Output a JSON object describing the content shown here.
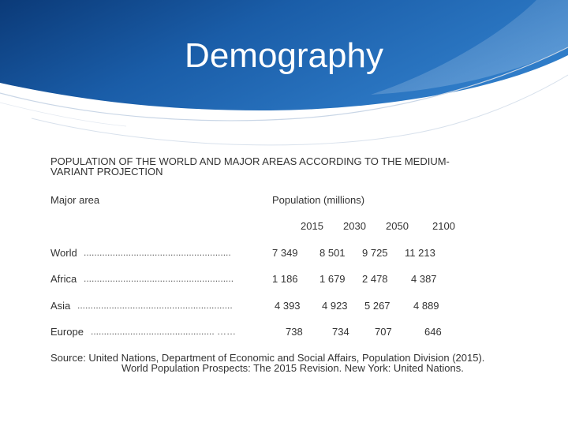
{
  "slide": {
    "title": "Demography",
    "heading": "POPULATION OF THE WORLD AND MAJOR AREAS ACCORDING TO THE MEDIUM-VARIANT PROJECTION"
  },
  "table": {
    "col_area": "Major area",
    "col_population": "Population (millions)",
    "years": [
      "2015",
      "2030",
      "2050",
      "2100"
    ],
    "rows": [
      {
        "area": "World",
        "dots": "........................................................",
        "values": [
          "7 349",
          "8 501",
          "9 725",
          "11 213"
        ]
      },
      {
        "area": "Africa",
        "dots": ".........................................................",
        "values": [
          "1 186",
          "1 679",
          "2 478",
          "4 387"
        ]
      },
      {
        "area": "Asia",
        "dots": "...........................................................",
        "values": [
          "4 393",
          "4 923",
          "5 267",
          "4 889"
        ]
      },
      {
        "area": "Europe",
        "dots": "............................................... ……",
        "values": [
          "738",
          "734",
          "707",
          "646"
        ]
      }
    ]
  },
  "source": {
    "part1": " Source: United Nations, Department of Economic and Social Affairs, Population Division (2015).",
    "part2": "World Population Prospects: The 2015 Revision. New York: United Nations."
  },
  "colors": {
    "banner_dark": "#0b3a78",
    "banner_mid": "#1f66b4",
    "banner_light": "#4a93d6"
  }
}
